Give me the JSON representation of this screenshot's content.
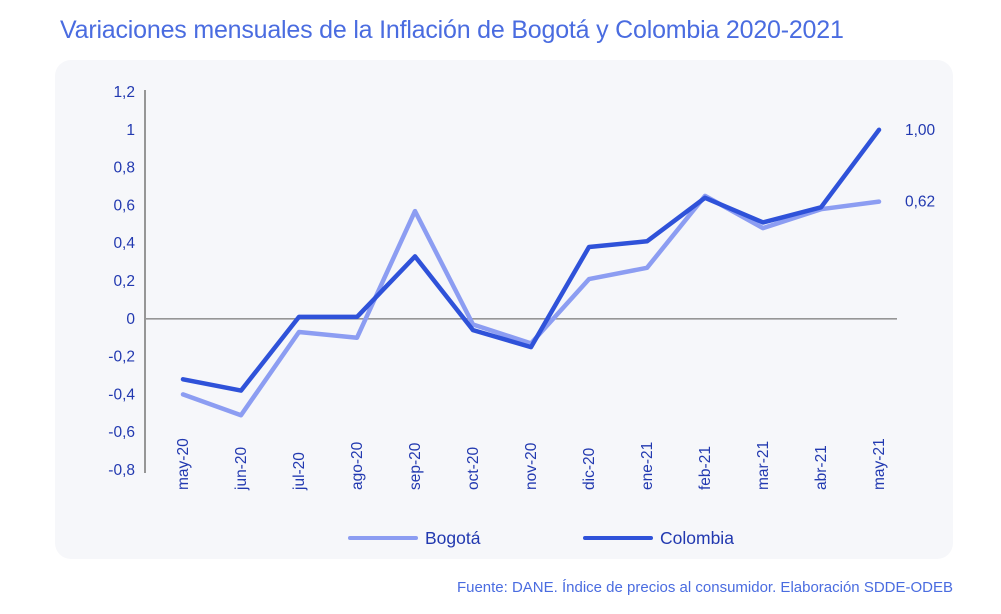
{
  "page": {
    "title": "Variaciones mensuales de la Inflación de Bogotá y Colombia 2020-2021",
    "footer": "Fuente: DANE. Índice de precios al consumidor. Elaboración SDDE-ODEB"
  },
  "colors": {
    "title_text": "#4a6ce0",
    "tick_label_text": "#2239b0",
    "bogota_line": "#8c9df2",
    "colombia_line": "#2f52d9",
    "axis_line": "#969696",
    "panel_background": "#f6f7fa",
    "footer_text": "#4a6ce0"
  },
  "legend": {
    "items": [
      {
        "label": "Bogotá",
        "color": "#8c9df2"
      },
      {
        "label": "Colombia",
        "color": "#2f52d9"
      }
    ]
  },
  "chart_data": {
    "type": "line",
    "title": "Variaciones mensuales de la Inflación de Bogotá y Colombia 2020-2021",
    "categories": [
      "may-20",
      "jun-20",
      "jul-20",
      "ago-20",
      "sep-20",
      "oct-20",
      "nov-20",
      "dic-20",
      "ene-21",
      "feb-21",
      "mar-21",
      "abr-21",
      "may-21"
    ],
    "series": [
      {
        "name": "Bogotá",
        "color": "#8c9df2",
        "values": [
          -0.4,
          -0.51,
          -0.07,
          -0.1,
          0.57,
          -0.03,
          -0.13,
          0.21,
          0.27,
          0.65,
          0.48,
          0.58,
          0.62
        ],
        "end_label": "0,62"
      },
      {
        "name": "Colombia",
        "color": "#2f52d9",
        "values": [
          -0.32,
          -0.38,
          0.01,
          0.01,
          0.33,
          -0.06,
          -0.15,
          0.38,
          0.41,
          0.64,
          0.51,
          0.59,
          1.0
        ],
        "end_label": "1,00"
      }
    ],
    "xlabel": "",
    "ylabel": "",
    "ylim": [
      -0.8,
      1.2
    ],
    "ytick_step": 0.2,
    "ytick_labels": [
      "1,2",
      "1",
      "0,8",
      "0,6",
      "0,4",
      "0,2",
      "0",
      "-0,2",
      "-0,4",
      "-0,6",
      "-0,8"
    ],
    "grid": false,
    "zero_line": true,
    "legend_position": "bottom",
    "source_note": "Fuente: DANE. Índice de precios al consumidor. Elaboración SDDE-ODEB"
  }
}
